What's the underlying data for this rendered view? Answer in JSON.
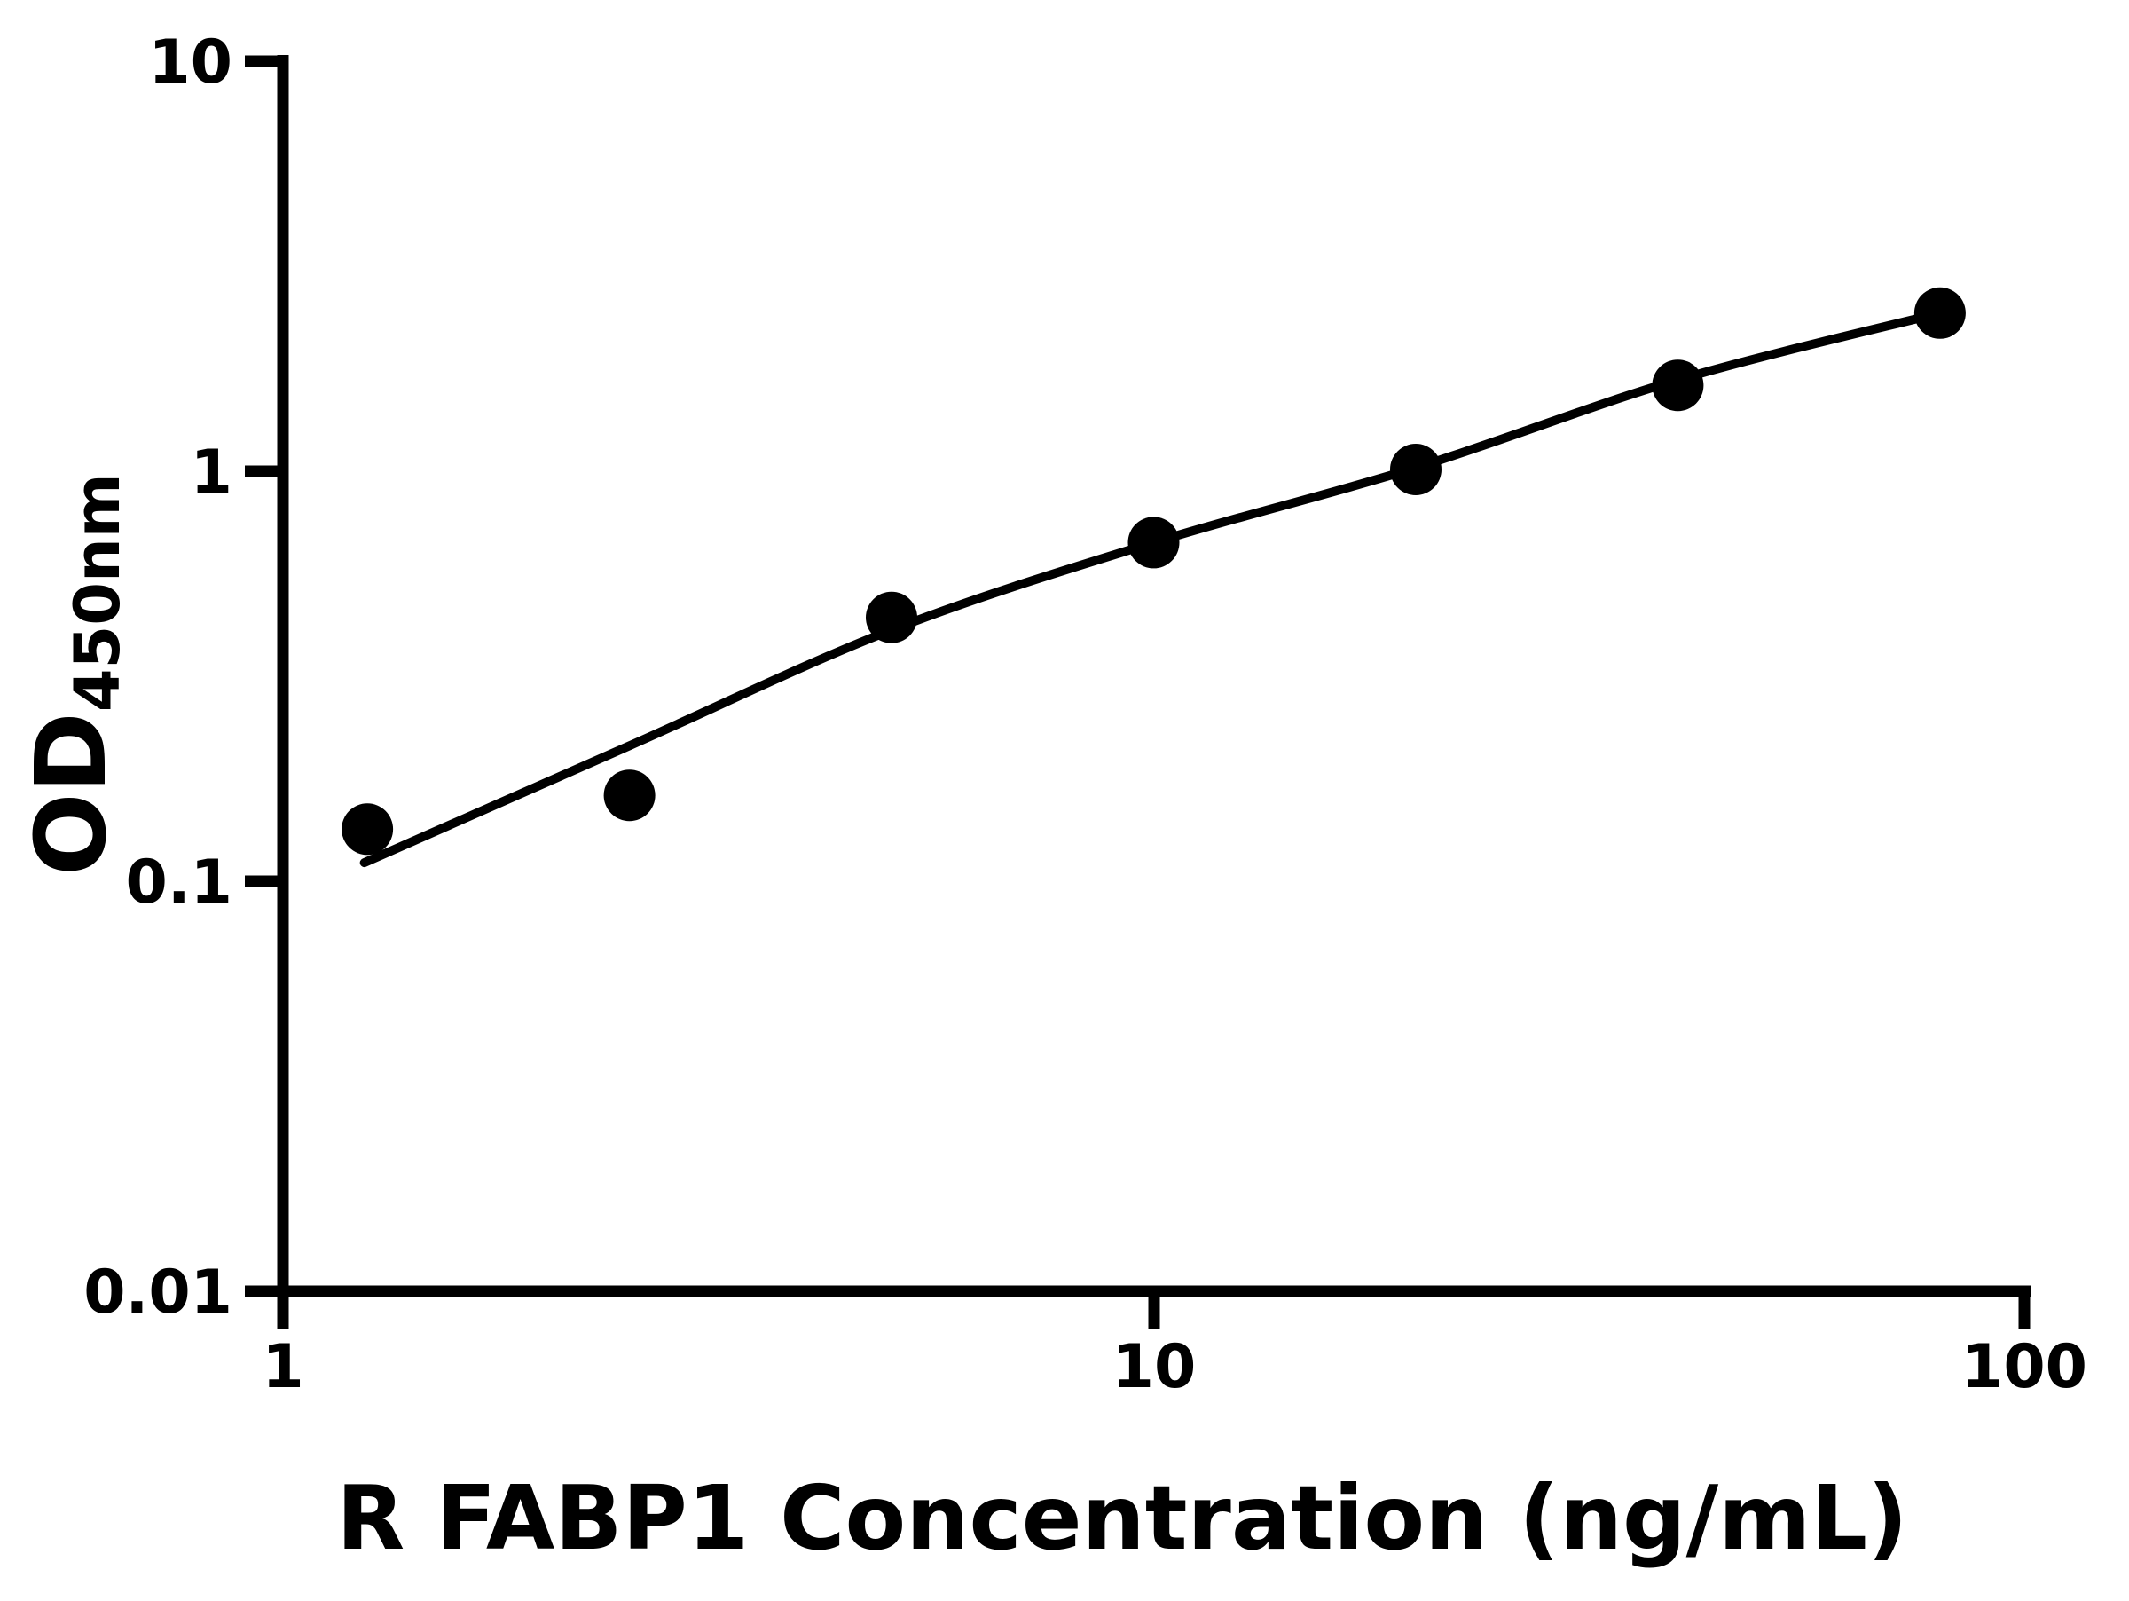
{
  "figure": {
    "background": "#ffffff",
    "foreground": "#000000"
  },
  "chart_data": {
    "type": "scatter",
    "title": "",
    "xlabel": "R FABP1 Concentration (ng/mL)",
    "ylabel": "OD",
    "ylabel_subscript": "450nm",
    "x_scale": "log",
    "y_scale": "log",
    "xlim": [
      1,
      100
    ],
    "ylim": [
      0.01,
      10
    ],
    "x_ticks": [
      1,
      10,
      100
    ],
    "x_tick_labels": [
      "1",
      "10",
      "100"
    ],
    "y_ticks": [
      0.01,
      0.1,
      1,
      10
    ],
    "y_tick_labels": [
      "0.01",
      "0.1",
      "1",
      "10"
    ],
    "grid": false,
    "legend": null,
    "marker_color": "#000000",
    "line_color": "#000000",
    "marker_radius_px": 29,
    "curve_stroke_px": 10,
    "axis_stroke_px": 13,
    "series": [
      {
        "name": "standard-points",
        "kind": "scatter",
        "x": [
          1.25,
          2.5,
          5,
          10,
          20,
          40,
          80
        ],
        "y": [
          0.134,
          0.162,
          0.44,
          0.67,
          1.01,
          1.62,
          2.43
        ]
      },
      {
        "name": "fit-curve",
        "kind": "line",
        "x": [
          1.24,
          2.5,
          5,
          10,
          20,
          40,
          80
        ],
        "y": [
          0.111,
          0.214,
          0.41,
          0.67,
          1.02,
          1.67,
          2.43
        ]
      }
    ]
  }
}
